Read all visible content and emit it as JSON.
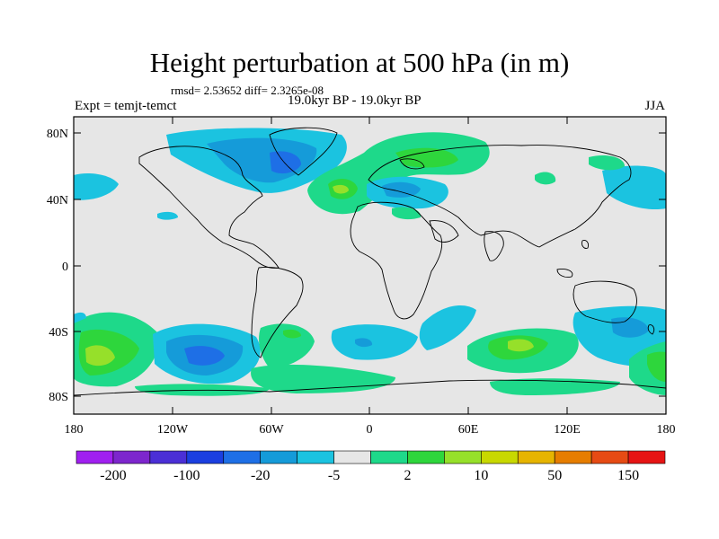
{
  "title": "Height perturbation at 500 hPa (in m)",
  "stats": "rmsd= 2.53652 diff= 2.3265e-08",
  "experiment": "Expt = temjt-temct",
  "period": "19.0kyr BP - 19.0kyr BP",
  "season": "JJA",
  "lat_labels": [
    "80N",
    "40N",
    "0",
    "40S",
    "80S"
  ],
  "lon_labels": [
    "180",
    "120W",
    "60W",
    "0",
    "60E",
    "120E",
    "180"
  ],
  "colorbar": {
    "labels": [
      "-200",
      "-100",
      "-20",
      "-5",
      "2",
      "10",
      "50",
      "150"
    ],
    "colors": [
      "#a020f0",
      "#7d26cd",
      "#4b2fd6",
      "#1b3fe0",
      "#1e6fe6",
      "#159bd9",
      "#1bc3e0",
      "#e6e6e6",
      "#1ed98a",
      "#2ed63c",
      "#96e02a",
      "#c8d800",
      "#e6b400",
      "#e67d00",
      "#e64b14",
      "#e61414"
    ]
  },
  "colors": {
    "background": "#e6e6e6",
    "land_outline": "#000000"
  }
}
